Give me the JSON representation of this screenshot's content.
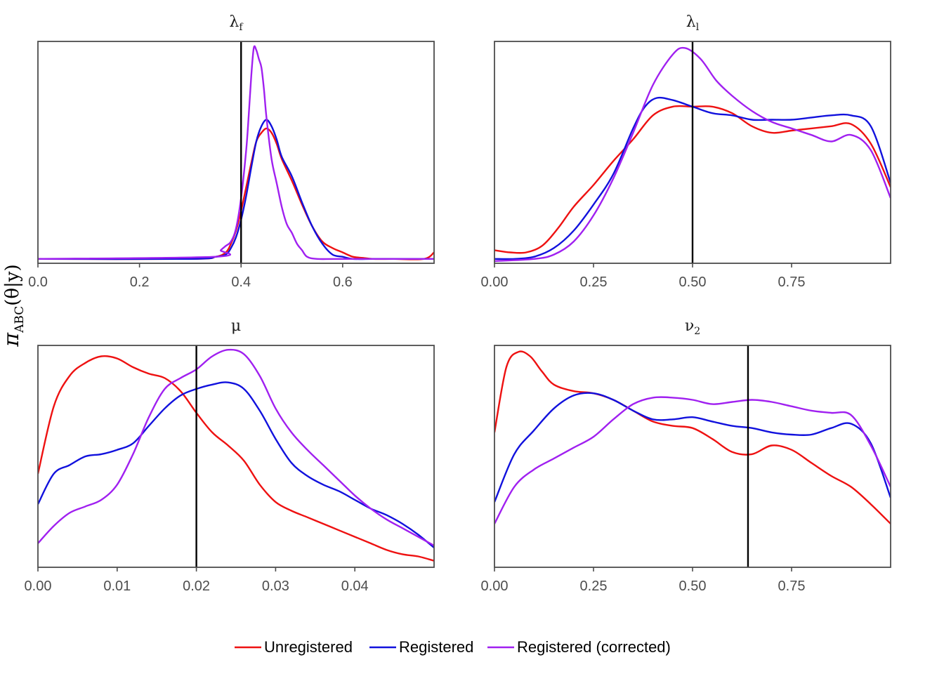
{
  "chart_data": {
    "type": "line",
    "ylabel": "π_ABC(θ|y)",
    "ylabel_main": "π",
    "ylabel_sub": "ABC",
    "ylabel_rest": "(θ|y)",
    "legend": {
      "placement": "bottom",
      "entries": [
        {
          "label": "Unregistered",
          "color": "#ee1111"
        },
        {
          "label": "Registered",
          "color": "#1111dd"
        },
        {
          "label": "Registered (corrected)",
          "color": "#a020f0"
        }
      ]
    },
    "colors": {
      "Unregistered": "#ee1111",
      "Registered": "#1111dd",
      "Registered (corrected)": "#a020f0",
      "reference_line": "#000000",
      "panel_border": "#4d4d4d"
    },
    "grid": false,
    "panels": [
      {
        "title": "λ",
        "title_sub": "f",
        "xlim": [
          0,
          0.78
        ],
        "ylim": [
          0,
          1.02
        ],
        "xticks": [
          0,
          0.2,
          0.4,
          0.6
        ],
        "xtick_labels": [
          "0.0",
          "0.2",
          "0.4",
          "0.6"
        ],
        "vline": 0.4,
        "series": [
          {
            "name": "Unregistered",
            "x": [
              0,
              0.3,
              0.35,
              0.37,
              0.38,
              0.39,
              0.4,
              0.41,
              0.42,
              0.43,
              0.44,
              0.45,
              0.46,
              0.47,
              0.48,
              0.5,
              0.52,
              0.54,
              0.56,
              0.58,
              0.6,
              0.62,
              0.64,
              0.66,
              0.7,
              0.76,
              0.78
            ],
            "y": [
              0.02,
              0.02,
              0.03,
              0.05,
              0.09,
              0.15,
              0.24,
              0.35,
              0.46,
              0.56,
              0.6,
              0.62,
              0.6,
              0.55,
              0.48,
              0.38,
              0.27,
              0.17,
              0.1,
              0.07,
              0.05,
              0.03,
              0.025,
              0.02,
              0.02,
              0.02,
              0.05
            ]
          },
          {
            "name": "Registered",
            "x": [
              0,
              0.3,
              0.35,
              0.37,
              0.38,
              0.39,
              0.4,
              0.41,
              0.42,
              0.43,
              0.44,
              0.45,
              0.46,
              0.47,
              0.48,
              0.5,
              0.52,
              0.54,
              0.56,
              0.58,
              0.6,
              0.62,
              0.66,
              0.7,
              0.78
            ],
            "y": [
              0.02,
              0.02,
              0.03,
              0.04,
              0.07,
              0.12,
              0.2,
              0.31,
              0.44,
              0.56,
              0.63,
              0.66,
              0.63,
              0.57,
              0.49,
              0.4,
              0.28,
              0.17,
              0.09,
              0.04,
              0.03,
              0.02,
              0.02,
              0.02,
              0.02
            ]
          },
          {
            "name": "Registered (corrected)",
            "x": [
              0,
              0.35,
              0.36,
              0.37,
              0.38,
              0.39,
              0.4,
              0.41,
              0.415,
              0.42,
              0.425,
              0.43,
              0.435,
              0.44,
              0.445,
              0.45,
              0.46,
              0.47,
              0.48,
              0.49,
              0.5,
              0.51,
              0.52,
              0.53,
              0.55,
              0.6,
              0.78
            ],
            "y": [
              0.02,
              0.03,
              0.06,
              0.08,
              0.1,
              0.16,
              0.3,
              0.52,
              0.68,
              0.86,
              0.99,
              0.98,
              0.94,
              0.9,
              0.8,
              0.67,
              0.48,
              0.37,
              0.26,
              0.18,
              0.14,
              0.09,
              0.06,
              0.03,
              0.02,
              0.02,
              0.02
            ]
          }
        ]
      },
      {
        "title": "λ",
        "title_sub": "l",
        "xlim": [
          0,
          1.0
        ],
        "ylim": [
          0,
          1.02
        ],
        "xticks": [
          0,
          0.25,
          0.5,
          0.75
        ],
        "xtick_labels": [
          "0.00",
          "0.25",
          "0.50",
          "0.75"
        ],
        "vline": 0.5,
        "series": [
          {
            "name": "Unregistered",
            "x": [
              0,
              0.04,
              0.08,
              0.12,
              0.16,
              0.2,
              0.25,
              0.3,
              0.35,
              0.4,
              0.45,
              0.5,
              0.55,
              0.6,
              0.65,
              0.7,
              0.75,
              0.8,
              0.85,
              0.9,
              0.95,
              1.0
            ],
            "y": [
              0.06,
              0.05,
              0.05,
              0.08,
              0.16,
              0.26,
              0.36,
              0.47,
              0.57,
              0.68,
              0.72,
              0.72,
              0.72,
              0.69,
              0.63,
              0.6,
              0.61,
              0.62,
              0.63,
              0.64,
              0.55,
              0.35
            ]
          },
          {
            "name": "Registered",
            "x": [
              0,
              0.05,
              0.1,
              0.15,
              0.2,
              0.25,
              0.3,
              0.35,
              0.38,
              0.41,
              0.45,
              0.5,
              0.55,
              0.6,
              0.65,
              0.7,
              0.75,
              0.8,
              0.85,
              0.9,
              0.95,
              1.0
            ],
            "y": [
              0.02,
              0.02,
              0.03,
              0.07,
              0.15,
              0.27,
              0.41,
              0.62,
              0.72,
              0.76,
              0.75,
              0.72,
              0.69,
              0.68,
              0.66,
              0.66,
              0.66,
              0.67,
              0.68,
              0.68,
              0.63,
              0.37
            ]
          },
          {
            "name": "Registered (corrected)",
            "x": [
              0,
              0.1,
              0.15,
              0.2,
              0.25,
              0.3,
              0.35,
              0.4,
              0.45,
              0.48,
              0.52,
              0.56,
              0.6,
              0.65,
              0.7,
              0.75,
              0.8,
              0.85,
              0.9,
              0.95,
              1.0
            ],
            "y": [
              0.01,
              0.02,
              0.04,
              0.1,
              0.22,
              0.39,
              0.6,
              0.82,
              0.96,
              0.99,
              0.94,
              0.84,
              0.77,
              0.7,
              0.65,
              0.62,
              0.59,
              0.56,
              0.59,
              0.52,
              0.3
            ]
          }
        ]
      },
      {
        "title": "μ",
        "title_sub": "",
        "xlim": [
          0,
          0.05
        ],
        "ylim": [
          0,
          1.02
        ],
        "xticks": [
          0,
          0.01,
          0.02,
          0.03,
          0.04
        ],
        "xtick_labels": [
          "0.00",
          "0.01",
          "0.02",
          "0.03",
          "0.04"
        ],
        "vline": 0.02,
        "series": [
          {
            "name": "Unregistered",
            "x": [
              0,
              0.002,
              0.004,
              0.006,
              0.008,
              0.01,
              0.012,
              0.014,
              0.016,
              0.018,
              0.02,
              0.022,
              0.024,
              0.026,
              0.028,
              0.03,
              0.032,
              0.034,
              0.036,
              0.038,
              0.04,
              0.042,
              0.044,
              0.046,
              0.048,
              0.05
            ],
            "y": [
              0.43,
              0.74,
              0.88,
              0.94,
              0.97,
              0.96,
              0.92,
              0.89,
              0.87,
              0.81,
              0.71,
              0.62,
              0.56,
              0.49,
              0.38,
              0.3,
              0.26,
              0.23,
              0.2,
              0.17,
              0.14,
              0.11,
              0.08,
              0.06,
              0.05,
              0.03
            ]
          },
          {
            "name": "Registered",
            "x": [
              0,
              0.002,
              0.004,
              0.006,
              0.008,
              0.01,
              0.012,
              0.014,
              0.016,
              0.018,
              0.02,
              0.022,
              0.024,
              0.026,
              0.028,
              0.03,
              0.032,
              0.034,
              0.036,
              0.038,
              0.04,
              0.042,
              0.044,
              0.046,
              0.048,
              0.05
            ],
            "y": [
              0.29,
              0.43,
              0.47,
              0.51,
              0.52,
              0.54,
              0.57,
              0.65,
              0.73,
              0.79,
              0.82,
              0.84,
              0.85,
              0.82,
              0.72,
              0.59,
              0.48,
              0.42,
              0.38,
              0.35,
              0.31,
              0.27,
              0.24,
              0.2,
              0.15,
              0.09
            ]
          },
          {
            "name": "Registered (corrected)",
            "x": [
              0,
              0.002,
              0.004,
              0.006,
              0.008,
              0.01,
              0.012,
              0.014,
              0.016,
              0.018,
              0.02,
              0.022,
              0.024,
              0.026,
              0.028,
              0.03,
              0.032,
              0.034,
              0.036,
              0.038,
              0.04,
              0.042,
              0.044,
              0.046,
              0.048,
              0.05
            ],
            "y": [
              0.11,
              0.19,
              0.25,
              0.28,
              0.31,
              0.38,
              0.52,
              0.69,
              0.82,
              0.87,
              0.91,
              0.97,
              1.0,
              0.98,
              0.88,
              0.73,
              0.62,
              0.54,
              0.47,
              0.4,
              0.33,
              0.27,
              0.22,
              0.18,
              0.14,
              0.1
            ]
          }
        ]
      },
      {
        "title": "ν",
        "title_sub": "2",
        "xlim": [
          0,
          1.0
        ],
        "ylim": [
          0,
          1.02
        ],
        "xticks": [
          0,
          0.25,
          0.5,
          0.75
        ],
        "xtick_labels": [
          "0.00",
          "0.25",
          "0.50",
          "0.75"
        ],
        "vline": 0.64,
        "series": [
          {
            "name": "Unregistered",
            "x": [
              0,
              0.03,
              0.06,
              0.09,
              0.12,
              0.15,
              0.2,
              0.25,
              0.3,
              0.35,
              0.4,
              0.45,
              0.5,
              0.55,
              0.6,
              0.65,
              0.7,
              0.75,
              0.8,
              0.85,
              0.9,
              0.95,
              1.0
            ],
            "y": [
              0.62,
              0.92,
              0.99,
              0.97,
              0.9,
              0.84,
              0.81,
              0.8,
              0.77,
              0.72,
              0.67,
              0.65,
              0.64,
              0.59,
              0.53,
              0.52,
              0.56,
              0.54,
              0.48,
              0.42,
              0.37,
              0.29,
              0.2
            ]
          },
          {
            "name": "Registered",
            "x": [
              0,
              0.05,
              0.1,
              0.15,
              0.2,
              0.25,
              0.3,
              0.35,
              0.4,
              0.45,
              0.5,
              0.55,
              0.6,
              0.65,
              0.7,
              0.75,
              0.8,
              0.85,
              0.9,
              0.95,
              1.0
            ],
            "y": [
              0.3,
              0.52,
              0.63,
              0.73,
              0.79,
              0.8,
              0.77,
              0.72,
              0.68,
              0.68,
              0.69,
              0.67,
              0.65,
              0.64,
              0.62,
              0.61,
              0.61,
              0.64,
              0.66,
              0.57,
              0.32
            ]
          },
          {
            "name": "Registered (corrected)",
            "x": [
              0,
              0.05,
              0.1,
              0.15,
              0.2,
              0.25,
              0.3,
              0.35,
              0.4,
              0.45,
              0.5,
              0.55,
              0.6,
              0.65,
              0.7,
              0.75,
              0.8,
              0.85,
              0.9,
              0.95,
              1.0
            ],
            "y": [
              0.2,
              0.37,
              0.45,
              0.5,
              0.55,
              0.6,
              0.68,
              0.75,
              0.78,
              0.78,
              0.77,
              0.75,
              0.76,
              0.77,
              0.76,
              0.74,
              0.72,
              0.71,
              0.7,
              0.56,
              0.37
            ]
          }
        ]
      }
    ]
  }
}
